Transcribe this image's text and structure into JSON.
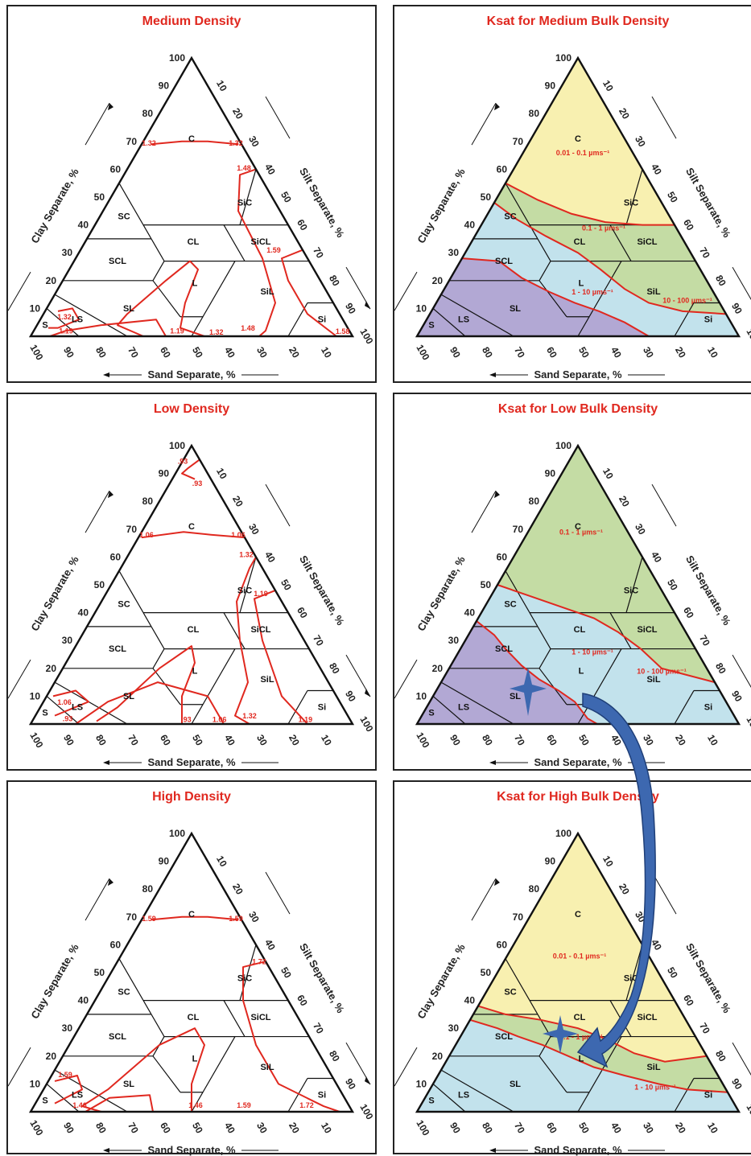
{
  "axis_labels": {
    "clay": "Clay Separate, %",
    "silt": "Silt Separate, %",
    "sand": "Sand Separate, %"
  },
  "ticks": {
    "clay": [
      "10",
      "20",
      "30",
      "40",
      "50",
      "60",
      "70",
      "80",
      "90",
      "100"
    ],
    "silt": [
      "10",
      "20",
      "30",
      "40",
      "50",
      "60",
      "70",
      "80",
      "90",
      "100"
    ],
    "sand": [
      "100",
      "90",
      "80",
      "70",
      "60",
      "50",
      "40",
      "30",
      "20",
      "10"
    ]
  },
  "class_labels": {
    "C": "C",
    "SiC": "SiC",
    "SC": "SC",
    "CL": "CL",
    "SiCL": "SiCL",
    "SCL": "SCL",
    "L": "L",
    "SiL": "SiL",
    "SL": "SL",
    "LS": "LS",
    "S": "S",
    "Si": "Si"
  },
  "zone_colors": {
    "yellow": "#f8f0b0",
    "green": "#c4dca4",
    "blue": "#c2e2ec",
    "purple": "#b2a8d4",
    "red_line": "#e0281f",
    "arrow": "#3d68b0"
  },
  "panels": [
    {
      "title": "Medium Density",
      "kind": "density",
      "density_labels": [
        {
          "text": "1.32",
          "at": [
            68.5,
            29.5,
            2.0
          ]
        },
        {
          "text": "1.32",
          "at": [
            68.5,
            2.5,
            29.0
          ]
        },
        {
          "text": "1.48",
          "at": [
            59.5,
            36.5,
            4.0
          ]
        },
        {
          "text": "1.59",
          "at": [
            30.0,
            60.5,
            9.5
          ]
        },
        {
          "text": "1.58",
          "at": [
            0.8,
            96.5,
            2.7
          ]
        },
        {
          "text": "1.48",
          "at": [
            2.0,
            66.5,
            31.5
          ]
        },
        {
          "text": "1.32",
          "at": [
            0.6,
            57.4,
            42.0
          ]
        },
        {
          "text": "1.19",
          "at": [
            1.0,
            45.0,
            54.0
          ]
        },
        {
          "text": "1.32",
          "at": [
            6.0,
            7.5,
            86.5
          ]
        },
        {
          "text": "1.19",
          "at": [
            1.0,
            10.5,
            88.5
          ]
        }
      ]
    },
    {
      "title": "Ksat for Medium Bulk Density",
      "kind": "ksat",
      "zones": [
        {
          "text": "0.01 - 0.1 µms⁻¹",
          "at": [
            65.0,
            19.0,
            16.0
          ]
        },
        {
          "text": "0.1 - 1 µms⁻¹",
          "at": [
            38.0,
            39.0,
            23.0
          ]
        },
        {
          "text": "1 - 10 µms⁻¹",
          "at": [
            15.0,
            47.0,
            38.0
          ]
        },
        {
          "text": "10 - 100 µms⁻¹",
          "at": [
            12.0,
            78.0,
            10.0
          ]
        }
      ]
    },
    {
      "title": "Low Density",
      "kind": "density",
      "density_labels": [
        {
          "text": ".93",
          "at": [
            93.5,
            0.5,
            6.0
          ]
        },
        {
          "text": ".93",
          "at": [
            85.5,
            9.0,
            5.5
          ]
        },
        {
          "text": "1.06",
          "at": [
            67.0,
            31.0,
            2.0
          ]
        },
        {
          "text": "1.06",
          "at": [
            67.0,
            2.5,
            30.5
          ]
        },
        {
          "text": "1.32",
          "at": [
            60.0,
            37.0,
            3.0
          ]
        },
        {
          "text": "1.19",
          "at": [
            46.0,
            48.5,
            5.5
          ]
        },
        {
          "text": "1.19",
          "at": [
            0.7,
            85.0,
            14.3
          ]
        },
        {
          "text": "1.32",
          "at": [
            2.0,
            67.0,
            31.0
          ]
        },
        {
          "text": "1.06",
          "at": [
            0.7,
            58.3,
            41.0
          ]
        },
        {
          "text": ".93",
          "at": [
            0.7,
            48.0,
            51.3
          ]
        },
        {
          "text": "1.06",
          "at": [
            7.0,
            7.0,
            86.0
          ]
        },
        {
          "text": ".93",
          "at": [
            1.0,
            11.0,
            88.0
          ]
        }
      ]
    },
    {
      "title": "Ksat for Low Bulk Density",
      "kind": "ksat",
      "zones": [
        {
          "text": "0.1 - 1 µms⁻¹",
          "at": [
            68.0,
            17.0,
            15.0
          ]
        },
        {
          "text": "1 - 10 µms⁻¹",
          "at": [
            25.0,
            42.0,
            33.0
          ]
        },
        {
          "text": "10 - 100 µms⁻¹",
          "at": [
            18.0,
            67.0,
            15.0
          ]
        }
      ]
    },
    {
      "title": "High Density",
      "kind": "density",
      "density_labels": [
        {
          "text": "1.59",
          "at": [
            68.5,
            29.5,
            2.0
          ]
        },
        {
          "text": "1.59",
          "at": [
            68.5,
            2.5,
            29.0
          ]
        },
        {
          "text": "1.72",
          "at": [
            53.0,
            44.5,
            2.5
          ]
        },
        {
          "text": "1.72",
          "at": [
            1.5,
            85.0,
            13.5
          ]
        },
        {
          "text": "1.59",
          "at": [
            1.5,
            65.5,
            33.0
          ]
        },
        {
          "text": "1.46",
          "at": [
            1.5,
            50.5,
            48.0
          ]
        },
        {
          "text": "1.46",
          "at": [
            1.5,
            14.5,
            84.0
          ]
        },
        {
          "text": "1.59",
          "at": [
            12.5,
            4.5,
            83.0
          ]
        }
      ]
    },
    {
      "title": "Ksat for High Bulk Density",
      "kind": "ksat",
      "zones": [
        {
          "text": "0.01 - 0.1 µms⁻¹",
          "at": [
            55.0,
            23.0,
            22.0
          ]
        },
        {
          "text": "0.1 - 1 µms⁻¹",
          "at": [
            26.0,
            38.0,
            36.0
          ]
        },
        {
          "text": "1 - 10 µms⁻¹",
          "at": [
            8.0,
            70.0,
            22.0
          ]
        }
      ]
    }
  ]
}
